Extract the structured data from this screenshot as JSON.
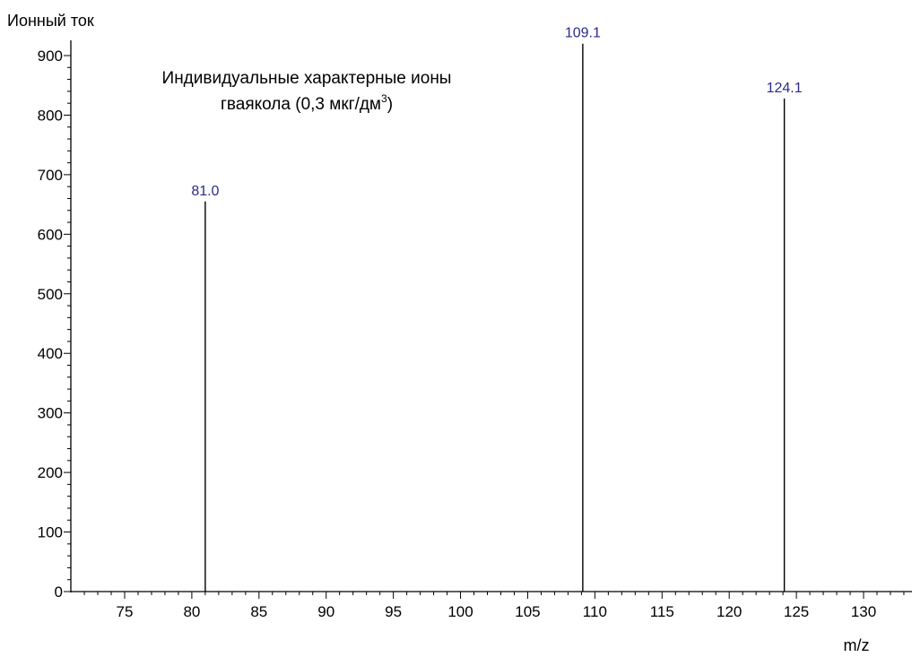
{
  "chart_data": {
    "type": "bar",
    "subtype": "stick-spectrum",
    "title_line1": "Индивидуальные характерные ионы",
    "title_line2": "гваякола (0,3 мкг/дм",
    "title_superscript": "3",
    "title_close": ")",
    "ylabel": "Ионный ток",
    "xlabel": "m/z",
    "xlim": [
      72,
      135
    ],
    "ylim": [
      0,
      920
    ],
    "x_ticks": [
      75,
      80,
      85,
      90,
      95,
      100,
      105,
      110,
      115,
      120,
      125,
      130
    ],
    "y_ticks": [
      0,
      100,
      200,
      300,
      400,
      500,
      600,
      700,
      800,
      900
    ],
    "grid": false,
    "peaks": [
      {
        "x": 81.0,
        "y": 655,
        "label": "81.0"
      },
      {
        "x": 109.1,
        "y": 920,
        "label": "109.1"
      },
      {
        "x": 124.1,
        "y": 828,
        "label": "124.1"
      }
    ],
    "colors": {
      "axis": "#000000",
      "peak_line": "#000000",
      "peak_label": "#2b2b8a"
    }
  }
}
